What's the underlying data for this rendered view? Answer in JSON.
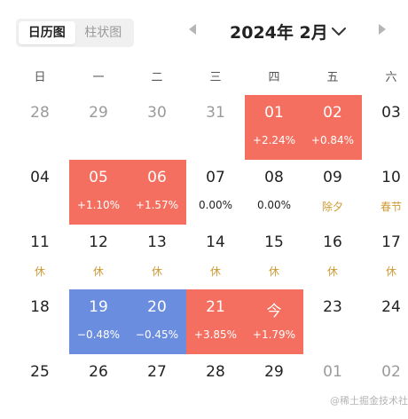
{
  "view_toggle": {
    "calendar_label": "日历图",
    "bar_label": "柱状图",
    "active": "calendar"
  },
  "header": {
    "title": "2024年 2月"
  },
  "weekdays": [
    "日",
    "一",
    "二",
    "三",
    "四",
    "五",
    "六"
  ],
  "colors": {
    "up": "#f46f5f",
    "down": "#6b8ddf",
    "holiday_text": "#cf9a34",
    "muted": "#9a9a9a"
  },
  "weeks": [
    [
      {
        "day": "28",
        "sub": "",
        "type": "other"
      },
      {
        "day": "29",
        "sub": "",
        "type": "other"
      },
      {
        "day": "30",
        "sub": "",
        "type": "other"
      },
      {
        "day": "31",
        "sub": "",
        "type": "other"
      },
      {
        "day": "01",
        "sub": "+2.24%",
        "type": "up"
      },
      {
        "day": "02",
        "sub": "+0.84%",
        "type": "up"
      },
      {
        "day": "03",
        "sub": "",
        "type": "normal"
      }
    ],
    [
      {
        "day": "04",
        "sub": "",
        "type": "normal"
      },
      {
        "day": "05",
        "sub": "+1.10%",
        "type": "up"
      },
      {
        "day": "06",
        "sub": "+1.57%",
        "type": "up"
      },
      {
        "day": "07",
        "sub": "0.00%",
        "type": "flat"
      },
      {
        "day": "08",
        "sub": "0.00%",
        "type": "flat"
      },
      {
        "day": "09",
        "sub": "除夕",
        "type": "holiday"
      },
      {
        "day": "10",
        "sub": "春节",
        "type": "holiday"
      }
    ],
    [
      {
        "day": "11",
        "sub": "休",
        "type": "holiday"
      },
      {
        "day": "12",
        "sub": "休",
        "type": "holiday"
      },
      {
        "day": "13",
        "sub": "休",
        "type": "holiday"
      },
      {
        "day": "14",
        "sub": "休",
        "type": "holiday"
      },
      {
        "day": "15",
        "sub": "休",
        "type": "holiday"
      },
      {
        "day": "16",
        "sub": "休",
        "type": "holiday"
      },
      {
        "day": "17",
        "sub": "休",
        "type": "holiday"
      }
    ],
    [
      {
        "day": "18",
        "sub": "",
        "type": "normal"
      },
      {
        "day": "19",
        "sub": "−0.48%",
        "type": "down"
      },
      {
        "day": "20",
        "sub": "−0.45%",
        "type": "down"
      },
      {
        "day": "21",
        "sub": "+3.85%",
        "type": "up"
      },
      {
        "day": "今",
        "sub": "+1.79%",
        "type": "up"
      },
      {
        "day": "23",
        "sub": "",
        "type": "normal"
      },
      {
        "day": "24",
        "sub": "",
        "type": "normal"
      }
    ],
    [
      {
        "day": "25",
        "sub": "",
        "type": "normal"
      },
      {
        "day": "26",
        "sub": "",
        "type": "normal"
      },
      {
        "day": "27",
        "sub": "",
        "type": "normal"
      },
      {
        "day": "28",
        "sub": "",
        "type": "normal"
      },
      {
        "day": "29",
        "sub": "",
        "type": "normal"
      },
      {
        "day": "01",
        "sub": "",
        "type": "other"
      },
      {
        "day": "02",
        "sub": "",
        "type": "other"
      }
    ]
  ],
  "watermark": "@稀土掘金技术社区"
}
